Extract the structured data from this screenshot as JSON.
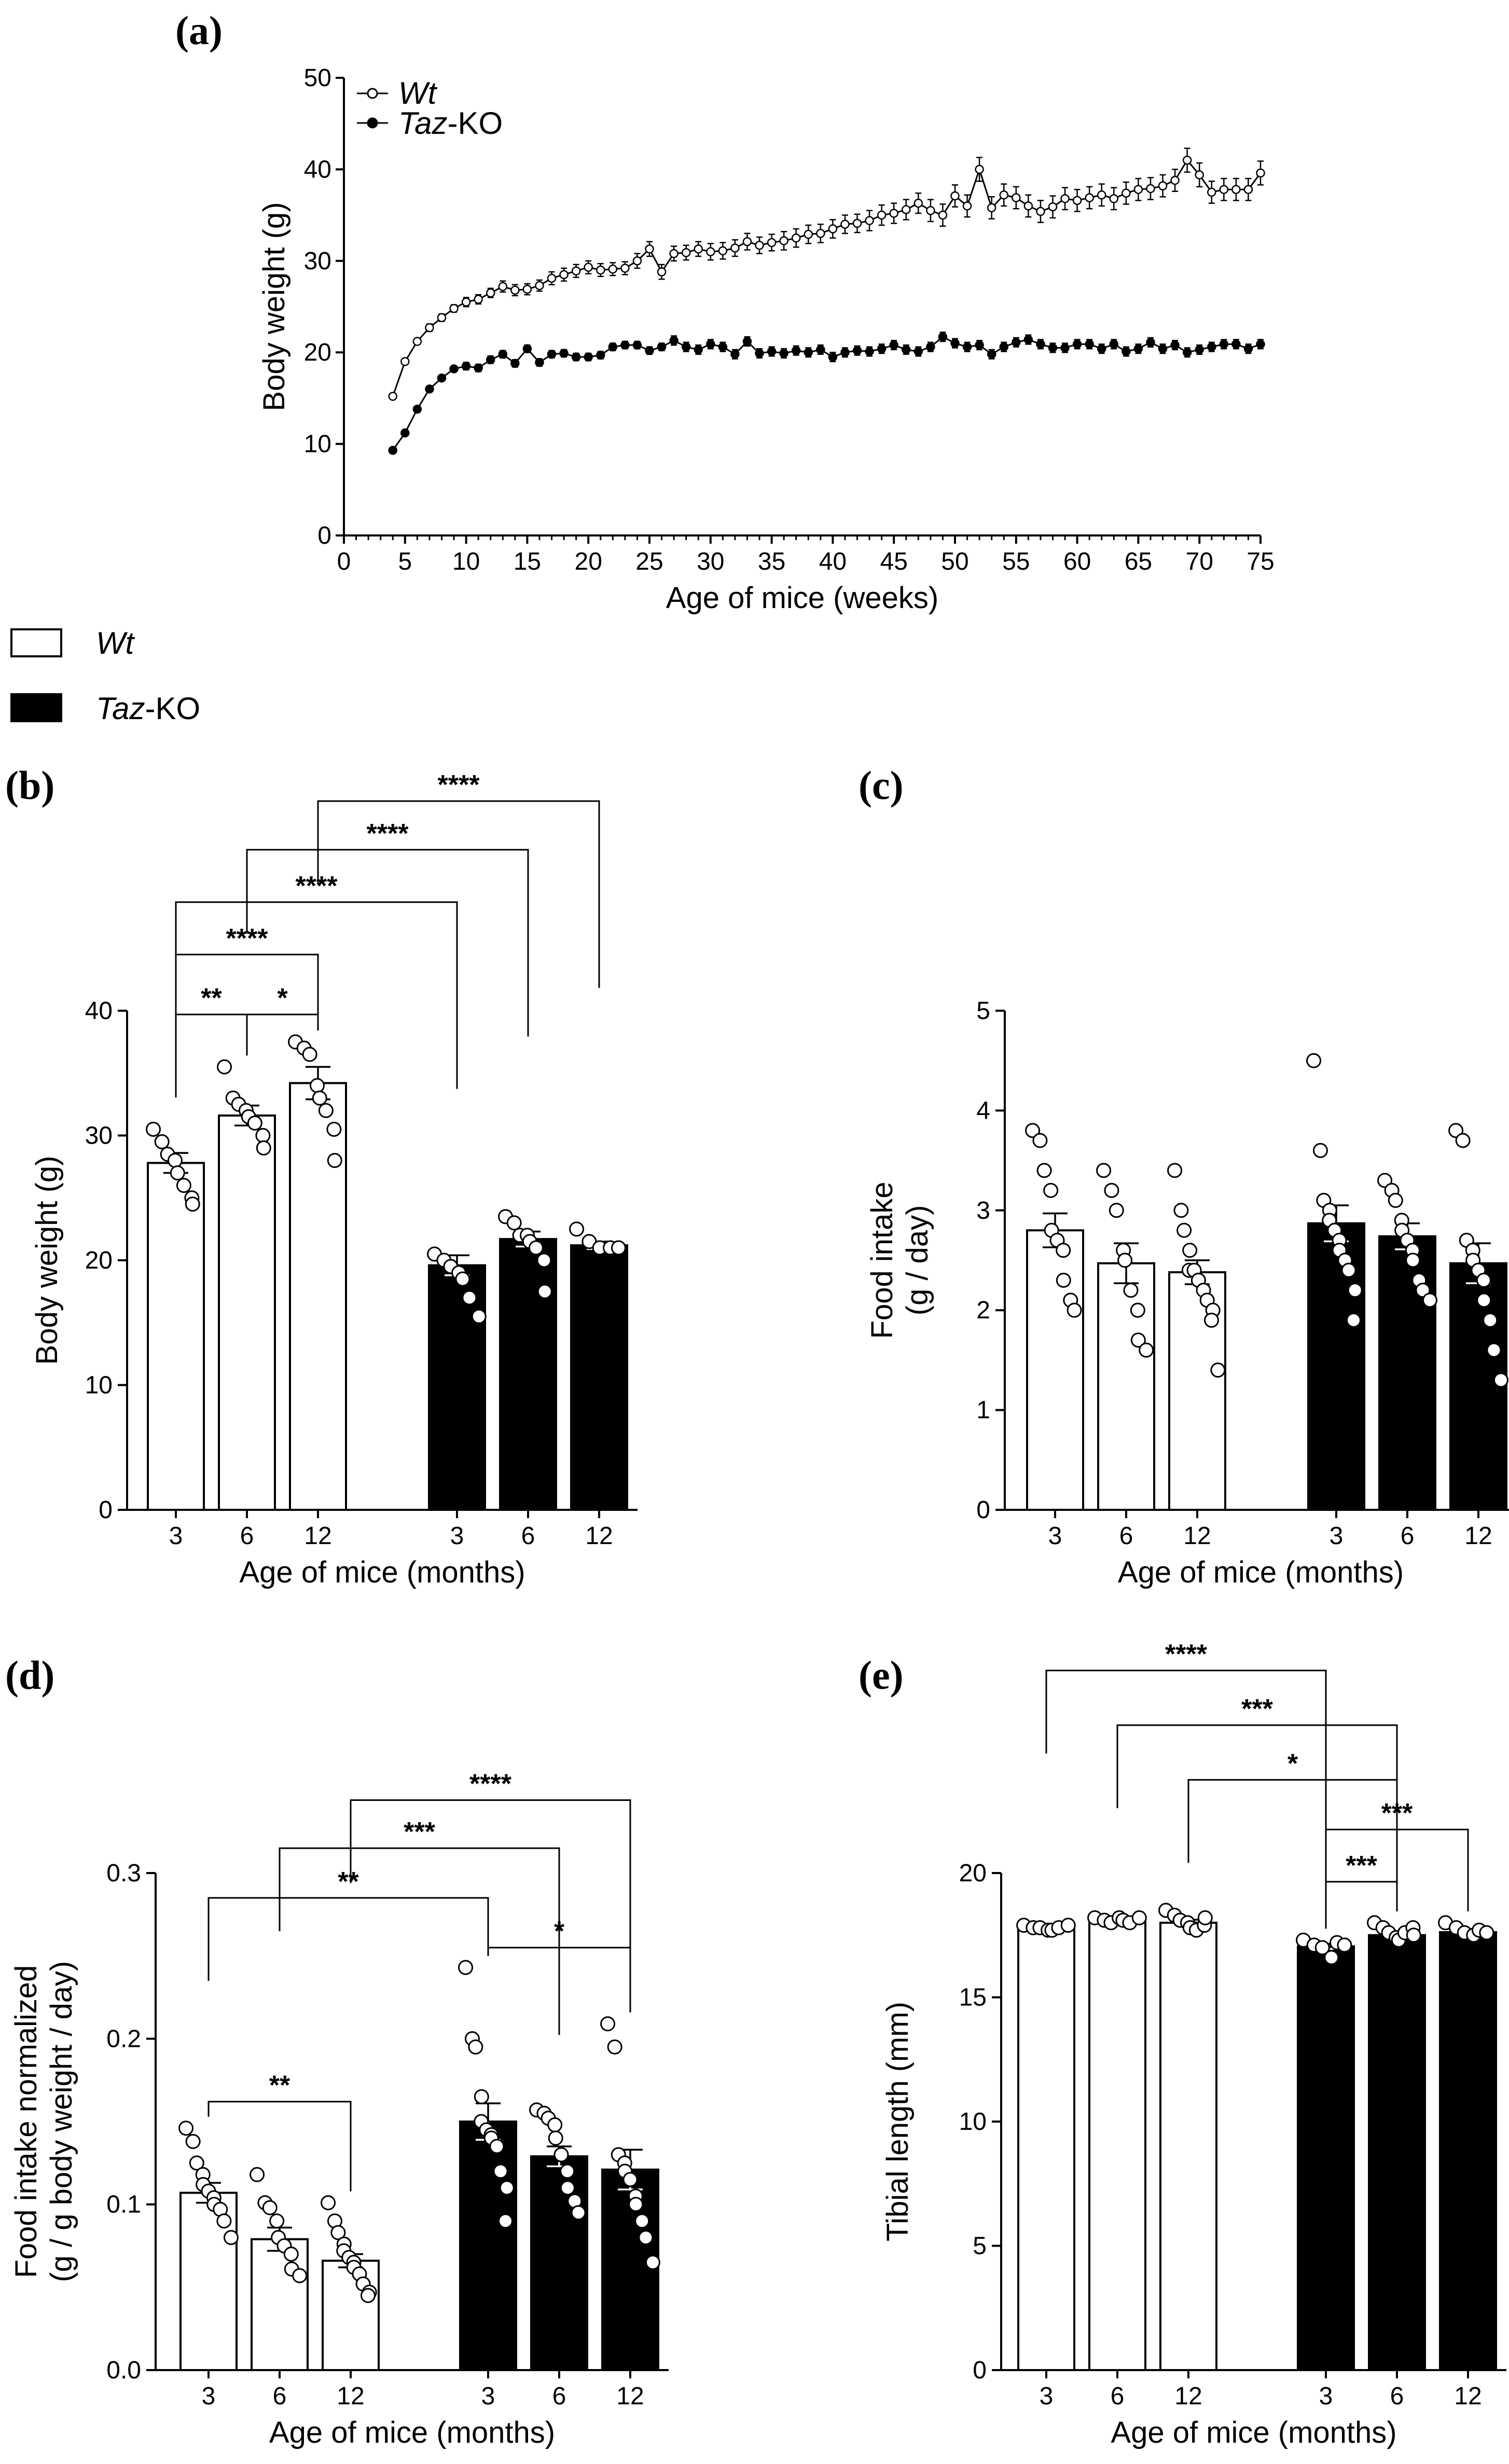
{
  "legend": {
    "wt": "Wt",
    "ko_italic": "Taz",
    "ko_suffix": "-KO"
  },
  "chart_data": [
    {
      "panel": "(a)",
      "type": "line",
      "title": "",
      "xlabel": "Age of mice (weeks)",
      "ylabel": "Body weight (g)",
      "xlim": [
        0,
        75
      ],
      "ylim": [
        0,
        50
      ],
      "xticks": [
        0,
        5,
        10,
        15,
        20,
        25,
        30,
        35,
        40,
        45,
        50,
        55,
        60,
        65,
        70,
        75
      ],
      "yticks": [
        0,
        10,
        20,
        30,
        40,
        50
      ],
      "legend": [
        {
          "name_italic": "Wt",
          "name_rest": "",
          "marker": "open"
        },
        {
          "name_italic": "Taz",
          "name_rest": "-KO",
          "marker": "filled"
        }
      ],
      "series": [
        {
          "name": "Wt",
          "marker": "open",
          "x": [
            4,
            5,
            6,
            7,
            8,
            9,
            10,
            11,
            12,
            13,
            14,
            15,
            16,
            17,
            18,
            19,
            20,
            21,
            22,
            23,
            24,
            25,
            26,
            27,
            28,
            29,
            30,
            31,
            32,
            33,
            34,
            35,
            36,
            37,
            38,
            39,
            40,
            41,
            42,
            43,
            44,
            45,
            46,
            47,
            48,
            49,
            50,
            51,
            52,
            53,
            54,
            55,
            56,
            57,
            58,
            59,
            60,
            61,
            62,
            63,
            64,
            65,
            66,
            67,
            68,
            69,
            70,
            71,
            72,
            73,
            74,
            75
          ],
          "values": [
            15.2,
            19,
            21.2,
            22.7,
            23.8,
            24.8,
            25.5,
            25.8,
            26.5,
            27.2,
            26.8,
            26.9,
            27.3,
            28.1,
            28.5,
            28.9,
            29.3,
            29.0,
            29.1,
            29.2,
            30.0,
            31.3,
            28.8,
            30.8,
            30.9,
            31.3,
            31.0,
            31.1,
            31.4,
            32.1,
            31.7,
            32.0,
            32.2,
            32.5,
            32.9,
            33.0,
            33.5,
            34.0,
            34.1,
            34.4,
            35.0,
            35.2,
            35.6,
            36.3,
            35.5,
            35.0,
            37.1,
            36.0,
            40.0,
            35.8,
            37.2,
            36.9,
            36.0,
            35.4,
            35.9,
            36.8,
            36.6,
            36.9,
            37.2,
            36.8,
            37.4,
            37.8,
            37.9,
            38.2,
            38.8,
            41.0,
            39.4,
            37.5,
            37.8,
            37.8,
            37.8,
            39.6
          ],
          "sem": [
            0.3,
            0.3,
            0.3,
            0.4,
            0.4,
            0.4,
            0.5,
            0.5,
            0.5,
            0.6,
            0.6,
            0.6,
            0.6,
            0.7,
            0.7,
            0.7,
            0.7,
            0.7,
            0.7,
            0.7,
            0.8,
            0.8,
            0.8,
            0.8,
            0.8,
            0.8,
            0.9,
            0.9,
            0.9,
            0.9,
            0.9,
            0.9,
            1.0,
            1.0,
            1.0,
            1.0,
            1.0,
            1.0,
            1.0,
            1.1,
            1.1,
            1.1,
            1.1,
            1.1,
            1.2,
            1.2,
            1.2,
            1.2,
            1.3,
            1.2,
            1.2,
            1.2,
            1.2,
            1.2,
            1.2,
            1.2,
            1.2,
            1.2,
            1.2,
            1.2,
            1.2,
            1.2,
            1.2,
            1.2,
            1.2,
            1.3,
            1.3,
            1.2,
            1.2,
            1.2,
            1.2,
            1.3
          ]
        },
        {
          "name": "Taz-KO",
          "marker": "filled",
          "x": [
            4,
            5,
            6,
            7,
            8,
            9,
            10,
            11,
            12,
            13,
            14,
            15,
            16,
            17,
            18,
            19,
            20,
            21,
            22,
            23,
            24,
            25,
            26,
            27,
            28,
            29,
            30,
            31,
            32,
            33,
            34,
            35,
            36,
            37,
            38,
            39,
            40,
            41,
            42,
            43,
            44,
            45,
            46,
            47,
            48,
            49,
            50,
            51,
            52,
            53,
            54,
            55,
            56,
            57,
            58,
            59,
            60,
            61,
            62,
            63,
            64,
            65,
            66,
            67,
            68,
            69,
            70,
            71,
            72,
            73,
            74,
            75
          ],
          "values": [
            9.3,
            11.2,
            13.8,
            16.0,
            17.2,
            18.2,
            18.5,
            18.3,
            19.2,
            19.8,
            18.8,
            20.4,
            18.9,
            19.8,
            19.9,
            19.5,
            19.5,
            19.7,
            20.6,
            20.8,
            20.8,
            20.2,
            20.6,
            21.3,
            20.6,
            20.3,
            20.9,
            20.6,
            19.8,
            21.2,
            19.9,
            20.1,
            19.9,
            20.2,
            20.0,
            20.3,
            19.5,
            20.0,
            20.2,
            20.1,
            20.4,
            20.8,
            20.3,
            20.1,
            20.6,
            21.7,
            21.0,
            20.6,
            20.8,
            19.8,
            20.6,
            21.1,
            21.4,
            20.9,
            20.5,
            20.5,
            20.9,
            20.9,
            20.4,
            20.9,
            20.1,
            20.4,
            21.1,
            20.4,
            20.8,
            20.0,
            20.3,
            20.6,
            20.9,
            20.9,
            20.4,
            20.9
          ],
          "sem": [
            0.3,
            0.3,
            0.3,
            0.3,
            0.3,
            0.3,
            0.4,
            0.4,
            0.4,
            0.4,
            0.4,
            0.4,
            0.4,
            0.4,
            0.4,
            0.4,
            0.4,
            0.4,
            0.4,
            0.4,
            0.4,
            0.4,
            0.4,
            0.5,
            0.5,
            0.5,
            0.5,
            0.5,
            0.5,
            0.5,
            0.5,
            0.5,
            0.5,
            0.5,
            0.5,
            0.5,
            0.5,
            0.5,
            0.5,
            0.5,
            0.5,
            0.5,
            0.5,
            0.5,
            0.5,
            0.5,
            0.5,
            0.5,
            0.5,
            0.5,
            0.5,
            0.5,
            0.5,
            0.5,
            0.5,
            0.5,
            0.5,
            0.5,
            0.5,
            0.5,
            0.5,
            0.5,
            0.5,
            0.5,
            0.5,
            0.5,
            0.5,
            0.5,
            0.5,
            0.5,
            0.5,
            0.5
          ]
        }
      ]
    },
    {
      "panel": "(b)",
      "type": "bar",
      "xlabel": "Age of mice (months)",
      "ylabel": "Body weight (g)",
      "ylim": [
        0,
        40
      ],
      "yticks": [
        0,
        10,
        20,
        30,
        40
      ],
      "categories": [
        "3",
        "6",
        "12",
        "3",
        "6",
        "12"
      ],
      "groups": [
        "Wt",
        "Wt",
        "Wt",
        "Taz-KO",
        "Taz-KO",
        "Taz-KO"
      ],
      "values": [
        27.8,
        31.6,
        34.2,
        19.6,
        21.7,
        21.2
      ],
      "sem": [
        0.8,
        0.8,
        1.3,
        0.8,
        0.6,
        0.3
      ],
      "points": [
        [
          30.5,
          29.5,
          28.5,
          28,
          27,
          26,
          25,
          24.5
        ],
        [
          35.5,
          33,
          32.5,
          32,
          31.5,
          31,
          30,
          29
        ],
        [
          37.5,
          37,
          36.5,
          34,
          33,
          32,
          30.5,
          28
        ],
        [
          20.5,
          20,
          19.5,
          19,
          18.5,
          17,
          15.5
        ],
        [
          23.5,
          23,
          22,
          22,
          21.5,
          21,
          20,
          17.5
        ],
        [
          22.5,
          21.5,
          21,
          21,
          21
        ]
      ],
      "comparisons": [
        {
          "from": 0,
          "to": 1,
          "label": "**",
          "y": 39.7
        },
        {
          "from": 1,
          "to": 2,
          "label": "*",
          "y": 39.7
        },
        {
          "from": 0,
          "to": 2,
          "label": "****",
          "y": 44.5
        },
        {
          "from": 0,
          "to": 3,
          "label": "****",
          "y": 48.7
        },
        {
          "from": 1,
          "to": 4,
          "label": "****",
          "y": 52.9
        },
        {
          "from": 2,
          "to": 5,
          "label": "****",
          "y": 56.8
        }
      ]
    },
    {
      "panel": "(c)",
      "type": "bar",
      "xlabel": "Age of mice (months)",
      "ylabel": "Food intake (g / day)",
      "ylabel_lines": [
        "Food intake",
        "(g / day)"
      ],
      "ylim": [
        0,
        5
      ],
      "yticks": [
        0,
        1,
        2,
        3,
        4,
        5
      ],
      "categories": [
        "3",
        "6",
        "12",
        "3",
        "6",
        "12"
      ],
      "groups": [
        "Wt",
        "Wt",
        "Wt",
        "Taz-KO",
        "Taz-KO",
        "Taz-KO"
      ],
      "values": [
        2.8,
        2.47,
        2.38,
        2.87,
        2.74,
        2.47
      ],
      "sem": [
        0.17,
        0.2,
        0.12,
        0.18,
        0.13,
        0.2
      ],
      "points": [
        [
          3.8,
          3.7,
          3.4,
          3.2,
          2.8,
          2.7,
          2.6,
          2.3,
          2.1,
          2.0
        ],
        [
          3.4,
          3.2,
          3.0,
          2.6,
          2.5,
          2.2,
          2.0,
          1.7,
          1.6
        ],
        [
          3.4,
          3.0,
          2.8,
          2.6,
          2.4,
          2.4,
          2.3,
          2.3,
          2.2,
          2.1,
          2.0,
          1.9,
          1.4
        ],
        [
          4.5,
          3.6,
          3.1,
          3.0,
          2.9,
          2.8,
          2.7,
          2.6,
          2.5,
          2.4,
          2.2,
          1.9
        ],
        [
          3.3,
          3.2,
          3.1,
          2.9,
          2.8,
          2.7,
          2.6,
          2.5,
          2.3,
          2.2,
          2.1
        ],
        [
          3.8,
          3.7,
          2.7,
          2.6,
          2.5,
          2.4,
          2.3,
          2.1,
          1.9,
          1.6,
          1.3
        ]
      ],
      "comparisons": []
    },
    {
      "panel": "(d)",
      "type": "bar",
      "xlabel": "Age of mice (months)",
      "ylabel": "Food intake normalized (g / g body weight / day)",
      "ylabel_lines": [
        "Food intake normalized",
        "(g / g body weight / day)"
      ],
      "ylim": [
        0,
        0.3
      ],
      "yticks": [
        "0.0",
        "0.1",
        "0.2",
        "0.3"
      ],
      "categories": [
        "3",
        "6",
        "12",
        "3",
        "6",
        "12"
      ],
      "groups": [
        "Wt",
        "Wt",
        "Wt",
        "Taz-KO",
        "Taz-KO",
        "Taz-KO"
      ],
      "values": [
        0.107,
        0.079,
        0.066,
        0.15,
        0.129,
        0.121
      ],
      "sem": [
        0.006,
        0.007,
        0.004,
        0.011,
        0.006,
        0.012
      ],
      "points": [
        [
          0.146,
          0.138,
          0.125,
          0.118,
          0.112,
          0.108,
          0.104,
          0.1,
          0.097,
          0.09,
          0.08
        ],
        [
          0.118,
          0.101,
          0.098,
          0.09,
          0.08,
          0.075,
          0.07,
          0.061,
          0.057
        ],
        [
          0.101,
          0.09,
          0.083,
          0.076,
          0.072,
          0.068,
          0.065,
          0.062,
          0.058,
          0.052,
          0.047,
          0.045
        ],
        [
          0.243,
          0.2,
          0.195,
          0.165,
          0.15,
          0.145,
          0.142,
          0.14,
          0.135,
          0.12,
          0.11,
          0.09
        ],
        [
          0.157,
          0.155,
          0.152,
          0.148,
          0.14,
          0.13,
          0.12,
          0.11,
          0.102,
          0.095
        ],
        [
          0.209,
          0.195,
          0.13,
          0.125,
          0.12,
          0.115,
          0.105,
          0.1,
          0.09,
          0.08,
          0.065
        ]
      ],
      "comparisons": [
        {
          "from": 0,
          "to": 2,
          "label": "**",
          "y": 0.162
        },
        {
          "from": 3,
          "to": 5,
          "label": "*",
          "y": 0.255
        },
        {
          "from": 0,
          "to": 3,
          "label": "**",
          "y": 0.285
        },
        {
          "from": 1,
          "to": 4,
          "label": "***",
          "y": 0.315
        },
        {
          "from": 2,
          "to": 5,
          "label": "****",
          "y": 0.344
        }
      ]
    },
    {
      "panel": "(e)",
      "type": "bar",
      "xlabel": "Age of mice (months)",
      "ylabel": "Tibial length (mm)",
      "ylim": [
        0,
        20
      ],
      "yticks": [
        0,
        5,
        10,
        15,
        20
      ],
      "categories": [
        "3",
        "6",
        "12",
        "3",
        "6",
        "12"
      ],
      "groups": [
        "Wt",
        "Wt",
        "Wt",
        "Taz-KO",
        "Taz-KO",
        "Taz-KO"
      ],
      "values": [
        17.8,
        18.1,
        18.0,
        17.05,
        17.5,
        17.62
      ],
      "sem": [
        0.05,
        0.06,
        0.12,
        0.1,
        0.1,
        0.07
      ],
      "points": [
        [
          17.9,
          17.8,
          17.8,
          17.7,
          17.7,
          17.8,
          17.9
        ],
        [
          18.2,
          18.1,
          18.0,
          18.2,
          18.1,
          18.0,
          18.2
        ],
        [
          18.5,
          18.3,
          18.1,
          18.0,
          17.8,
          17.7,
          17.9,
          18.2
        ],
        [
          17.3,
          17.1,
          17.0,
          16.6,
          17.2,
          17.1
        ],
        [
          18.0,
          17.8,
          17.6,
          17.4,
          17.3,
          17.6,
          17.8,
          17.5
        ],
        [
          18.0,
          17.8,
          17.6,
          17.5,
          17.7,
          17.6
        ]
      ],
      "comparisons": [
        {
          "from": 3,
          "to": 4,
          "label": "***",
          "y": 19.65
        },
        {
          "from": 3,
          "to": 5,
          "label": "***",
          "y": 21.75
        },
        {
          "from": 2,
          "to": 4,
          "label": "*",
          "y": 23.75
        },
        {
          "from": 1,
          "to": 4,
          "label": "***",
          "y": 25.95
        },
        {
          "from": 0,
          "to": 3,
          "label": "****",
          "y": 28.15
        }
      ]
    }
  ]
}
